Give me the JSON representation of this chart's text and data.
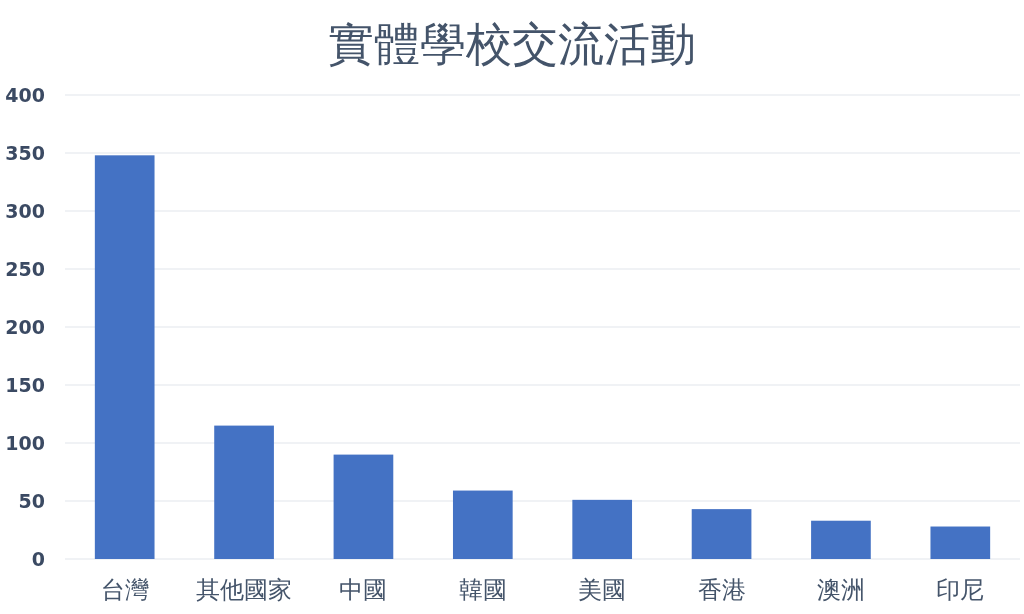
{
  "chart_data": {
    "type": "bar",
    "title": "實體學校交流活動",
    "categories": [
      "台灣",
      "其他國家",
      "中國",
      "韓國",
      "美國",
      "香港",
      "澳洲",
      "印尼"
    ],
    "values": [
      348,
      115,
      90,
      59,
      51,
      43,
      33,
      28
    ],
    "color": "#4472c4",
    "ylim": [
      0,
      400
    ],
    "yticks": [
      0,
      50,
      100,
      150,
      200,
      250,
      300,
      350,
      400
    ],
    "grid": "y"
  }
}
